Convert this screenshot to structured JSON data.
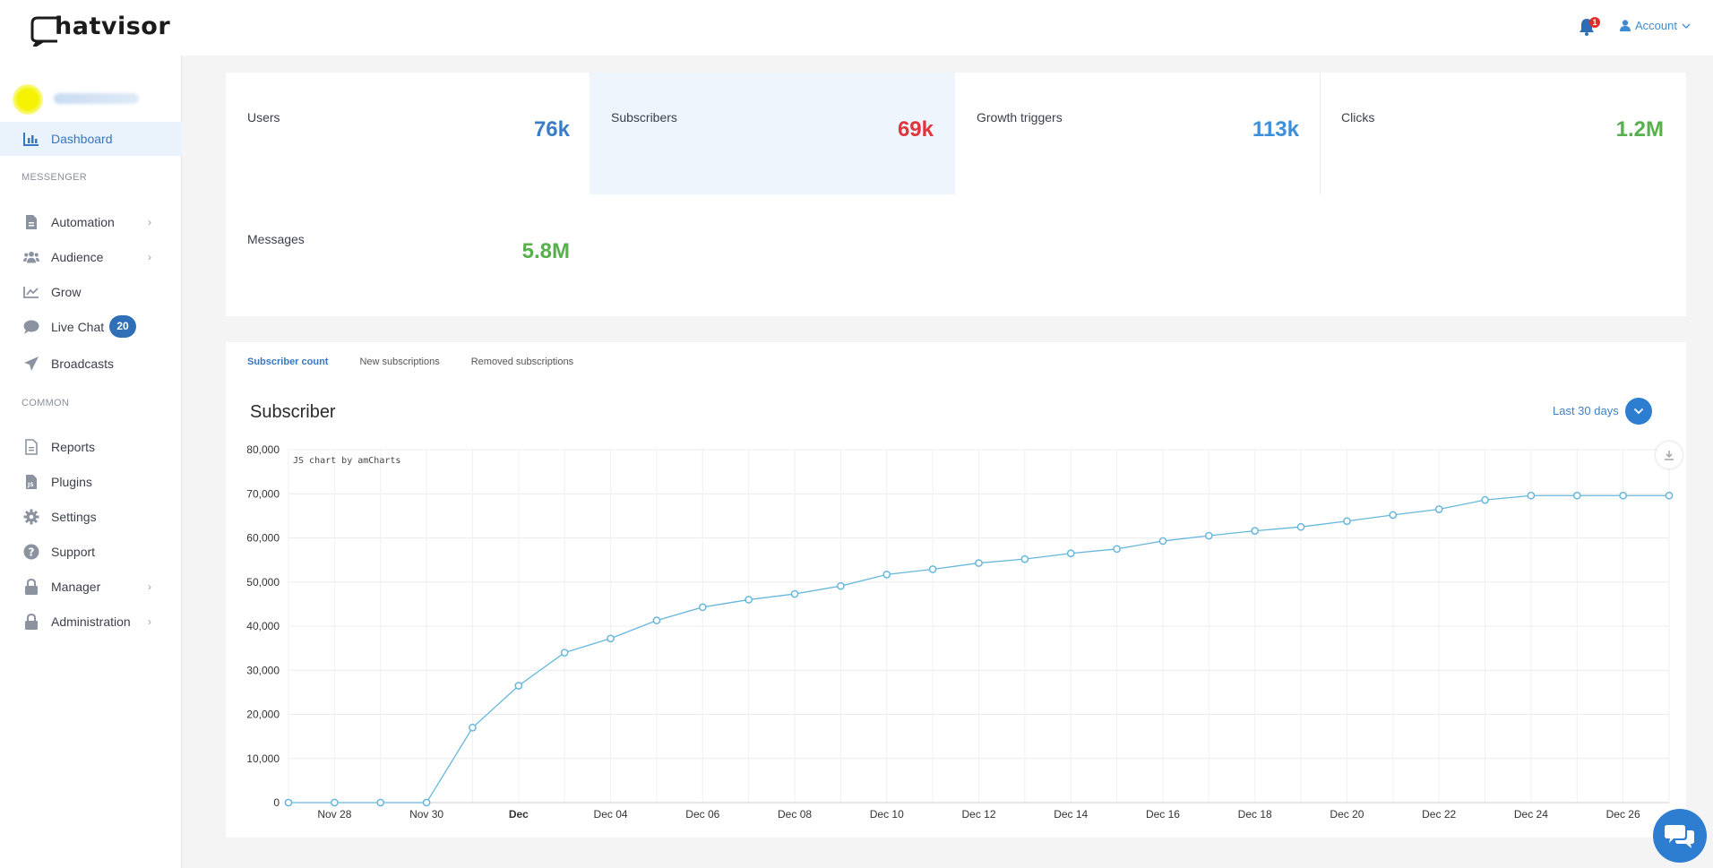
{
  "header": {
    "logo_text": "hatvisor",
    "notification_count": "1",
    "account_label": "Account"
  },
  "sidebar": {
    "dashboard": "Dashboard",
    "section_messenger": "MESSENGER",
    "section_common": "COMMON",
    "items": [
      {
        "label": "Automation",
        "icon": "document-icon"
      },
      {
        "label": "Audience",
        "icon": "users-icon"
      },
      {
        "label": "Grow",
        "icon": "growth-chart-icon"
      },
      {
        "label": "Live Chat",
        "icon": "chat-bubble-icon",
        "badge": "20"
      },
      {
        "label": "Broadcasts",
        "icon": "paper-plane-icon"
      },
      {
        "label": "Reports",
        "icon": "report-icon"
      },
      {
        "label": "Plugins",
        "icon": "js-file-icon"
      },
      {
        "label": "Settings",
        "icon": "gear-icon"
      },
      {
        "label": "Support",
        "icon": "question-icon"
      },
      {
        "label": "Manager",
        "icon": "lock-icon"
      },
      {
        "label": "Administration",
        "icon": "lock-icon"
      }
    ]
  },
  "stats": [
    {
      "label": "Users",
      "value": "76k",
      "color": "#3a7dc6"
    },
    {
      "label": "Subscribers",
      "value": "69k",
      "color": "#e0353f"
    },
    {
      "label": "Growth triggers",
      "value": "113k",
      "color": "#3d8fd9"
    },
    {
      "label": "Clicks",
      "value": "1.2M",
      "color": "#57b04c"
    },
    {
      "label": "Messages",
      "value": "5.8M",
      "color": "#57b04c"
    }
  ],
  "chart_panel": {
    "tabs": [
      "Subscriber count",
      "New subscriptions",
      "Removed subscriptions"
    ],
    "title": "Subscriber",
    "range": "Last 30 days",
    "credit": "JS chart by amCharts"
  },
  "chart_data": {
    "type": "line",
    "title": "Subscriber",
    "xlabel": "",
    "ylabel": "",
    "ylim": [
      0,
      80000
    ],
    "y_ticks": [
      "0",
      "10,000",
      "20,000",
      "30,000",
      "40,000",
      "50,000",
      "60,000",
      "70,000",
      "80,000"
    ],
    "x_ticks": [
      "Nov 28",
      "Nov 30",
      "Dec",
      "Dec 04",
      "Dec 06",
      "Dec 08",
      "Dec 10",
      "Dec 12",
      "Dec 14",
      "Dec 16",
      "Dec 18",
      "Dec 20",
      "Dec 22",
      "Dec 24",
      "Dec 26"
    ],
    "grid": true,
    "line_color": "#67b7dc",
    "series": [
      {
        "x": [
          "Nov 27",
          "Nov 28",
          "Nov 29",
          "Nov 30",
          "Dec 01",
          "Dec 02",
          "Dec 03",
          "Dec 04",
          "Dec 05",
          "Dec 06",
          "Dec 07",
          "Dec 08",
          "Dec 09",
          "Dec 10",
          "Dec 11",
          "Dec 12",
          "Dec 13",
          "Dec 14",
          "Dec 15",
          "Dec 16",
          "Dec 17",
          "Dec 18",
          "Dec 19",
          "Dec 20",
          "Dec 21",
          "Dec 22",
          "Dec 23",
          "Dec 24",
          "Dec 25",
          "Dec 26",
          "Dec 27"
        ],
        "values": [
          0,
          0,
          0,
          0,
          17000,
          26500,
          34000,
          37200,
          41300,
          44300,
          46000,
          47300,
          49100,
          51700,
          52900,
          54300,
          55200,
          56500,
          57500,
          59300,
          60500,
          61600,
          62500,
          63800,
          65200,
          66500,
          68600,
          69600,
          69600,
          69600,
          69600
        ]
      }
    ]
  }
}
